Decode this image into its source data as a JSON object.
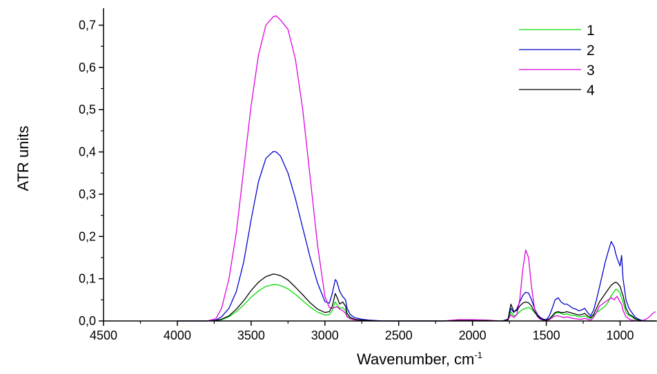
{
  "chart_data": {
    "type": "line",
    "title": "",
    "xlabel": "Wavenumber, cm",
    "xlabel_superscript": "-1",
    "ylabel": "ATR units",
    "xlim": [
      4500,
      750
    ],
    "ylim": [
      0,
      0.74
    ],
    "x_ticks": [
      4500,
      4000,
      3500,
      3000,
      2500,
      2000,
      1500,
      1000
    ],
    "x_tick_labels": [
      "4500",
      "4000",
      "3500",
      "3000",
      "2500",
      "2000",
      "1500",
      "1000"
    ],
    "y_ticks": [
      0,
      0.1,
      0.2,
      0.3,
      0.4,
      0.5,
      0.6,
      0.7
    ],
    "y_tick_labels": [
      "0,0",
      "0,1",
      "0,2",
      "0,3",
      "0,4",
      "0,5",
      "0,6",
      "0,7"
    ],
    "grid": false,
    "legend_position": "top-right",
    "x": [
      4000,
      3800,
      3740,
      3700,
      3650,
      3600,
      3550,
      3500,
      3450,
      3400,
      3350,
      3330,
      3300,
      3250,
      3200,
      3150,
      3100,
      3050,
      3000,
      2970,
      2950,
      2930,
      2920,
      2900,
      2880,
      2860,
      2850,
      2830,
      2800,
      2750,
      2700,
      2650,
      2600,
      2550,
      2500,
      2400,
      2300,
      2200,
      2100,
      2000,
      1900,
      1800,
      1760,
      1740,
      1720,
      1700,
      1680,
      1660,
      1640,
      1620,
      1600,
      1580,
      1560,
      1540,
      1520,
      1500,
      1480,
      1460,
      1440,
      1420,
      1400,
      1380,
      1360,
      1340,
      1320,
      1300,
      1280,
      1260,
      1240,
      1220,
      1200,
      1180,
      1160,
      1140,
      1120,
      1100,
      1080,
      1060,
      1040,
      1030,
      1020,
      1000,
      990,
      980,
      960,
      940,
      920,
      900,
      880,
      860,
      840,
      820,
      800,
      780,
      760
    ],
    "series": [
      {
        "name": "1",
        "color": "#00dd00",
        "values": [
          0,
          0,
          0.001,
          0.003,
          0.01,
          0.022,
          0.038,
          0.056,
          0.071,
          0.082,
          0.086,
          0.086,
          0.084,
          0.076,
          0.063,
          0.048,
          0.033,
          0.021,
          0.014,
          0.015,
          0.025,
          0.045,
          0.04,
          0.03,
          0.032,
          0.025,
          0.012,
          0.006,
          0.003,
          0.001,
          0,
          0,
          0,
          0,
          0,
          0,
          0,
          0,
          0.001,
          0.001,
          0.001,
          0,
          0.002,
          0.022,
          0.012,
          0.015,
          0.022,
          0.027,
          0.03,
          0.032,
          0.028,
          0.02,
          0.012,
          0.006,
          0.003,
          0.002,
          0.004,
          0.01,
          0.018,
          0.02,
          0.018,
          0.015,
          0.017,
          0.014,
          0.013,
          0.012,
          0.01,
          0.01,
          0.012,
          0.008,
          0.006,
          0.012,
          0.02,
          0.025,
          0.03,
          0.035,
          0.045,
          0.06,
          0.07,
          0.075,
          0.074,
          0.066,
          0.055,
          0.045,
          0.02,
          0.012,
          0.01,
          0.004,
          0.002,
          0.001,
          0,
          0,
          0,
          0,
          0
        ]
      },
      {
        "name": "2",
        "color": "#0000cc",
        "values": [
          0,
          0,
          0.002,
          0.01,
          0.03,
          0.07,
          0.14,
          0.24,
          0.33,
          0.385,
          0.401,
          0.4,
          0.39,
          0.35,
          0.29,
          0.22,
          0.15,
          0.09,
          0.046,
          0.042,
          0.065,
          0.098,
          0.094,
          0.07,
          0.058,
          0.05,
          0.03,
          0.016,
          0.008,
          0.004,
          0.002,
          0.001,
          0,
          0,
          0,
          0,
          0,
          0,
          0.002,
          0.002,
          0.001,
          0,
          0.004,
          0.03,
          0.02,
          0.028,
          0.045,
          0.06,
          0.068,
          0.066,
          0.05,
          0.03,
          0.015,
          0.008,
          0.004,
          0.003,
          0.012,
          0.03,
          0.05,
          0.055,
          0.045,
          0.04,
          0.04,
          0.035,
          0.03,
          0.028,
          0.024,
          0.026,
          0.03,
          0.02,
          0.012,
          0.025,
          0.05,
          0.08,
          0.11,
          0.14,
          0.165,
          0.188,
          0.175,
          0.16,
          0.148,
          0.13,
          0.155,
          0.1,
          0.05,
          0.03,
          0.02,
          0.01,
          0.005,
          0.002,
          0.001,
          0,
          0,
          0,
          0
        ]
      },
      {
        "name": "3",
        "color": "#dd00dd",
        "values": [
          0,
          0,
          0.005,
          0.03,
          0.1,
          0.21,
          0.36,
          0.51,
          0.63,
          0.7,
          0.72,
          0.722,
          0.712,
          0.69,
          0.62,
          0.5,
          0.34,
          0.18,
          0.058,
          0.032,
          0.03,
          0.032,
          0.034,
          0.028,
          0.025,
          0.018,
          0.01,
          0.005,
          0.003,
          0.001,
          0,
          0,
          0,
          0,
          0,
          0,
          0,
          0,
          0.003,
          0.003,
          0.002,
          0,
          0.002,
          0.015,
          0.008,
          0.015,
          0.05,
          0.12,
          0.168,
          0.15,
          0.08,
          0.03,
          0.01,
          0.004,
          0.002,
          0.001,
          0.003,
          0.008,
          0.012,
          0.012,
          0.01,
          0.008,
          0.01,
          0.008,
          0.006,
          0.005,
          0.004,
          0.004,
          0.006,
          0.004,
          0.002,
          0.008,
          0.02,
          0.035,
          0.04,
          0.045,
          0.05,
          0.055,
          0.05,
          0.055,
          0.058,
          0.045,
          0.04,
          0.025,
          0.01,
          0.005,
          0.002,
          0.001,
          0,
          0,
          0.002,
          0.005,
          0.01,
          0.018,
          0.022
        ]
      },
      {
        "name": "4",
        "color": "#000000",
        "values": [
          0,
          0,
          0.001,
          0.004,
          0.012,
          0.028,
          0.048,
          0.072,
          0.092,
          0.105,
          0.111,
          0.11,
          0.107,
          0.097,
          0.08,
          0.062,
          0.043,
          0.028,
          0.02,
          0.022,
          0.035,
          0.065,
          0.058,
          0.04,
          0.045,
          0.035,
          0.018,
          0.009,
          0.004,
          0.002,
          0.001,
          0,
          0,
          0,
          0,
          0,
          0,
          0,
          0.001,
          0.001,
          0.001,
          0,
          0.003,
          0.04,
          0.022,
          0.025,
          0.035,
          0.042,
          0.045,
          0.043,
          0.035,
          0.022,
          0.012,
          0.006,
          0.003,
          0.002,
          0.005,
          0.012,
          0.02,
          0.022,
          0.02,
          0.02,
          0.022,
          0.02,
          0.018,
          0.016,
          0.014,
          0.015,
          0.018,
          0.012,
          0.008,
          0.015,
          0.03,
          0.045,
          0.055,
          0.065,
          0.075,
          0.085,
          0.09,
          0.092,
          0.09,
          0.082,
          0.07,
          0.06,
          0.03,
          0.016,
          0.012,
          0.006,
          0.003,
          0.001,
          0,
          0,
          0,
          0,
          0
        ]
      }
    ]
  }
}
